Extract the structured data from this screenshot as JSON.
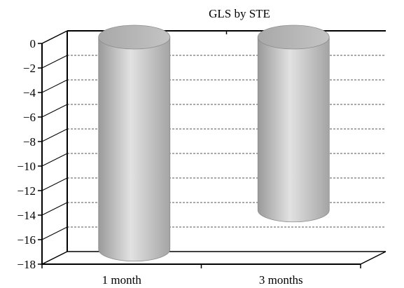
{
  "chart_data": {
    "type": "bar",
    "style": "3d-cylinder",
    "title": "GLS by STE",
    "xlabel": "",
    "ylabel": "",
    "categories": [
      "1 month",
      "3 months"
    ],
    "values": [
      -17.3,
      -14.1
    ],
    "ylim": [
      -18,
      0
    ],
    "yticks": [
      0,
      -2,
      -4,
      -6,
      -8,
      -10,
      -12,
      -14,
      -16,
      -18
    ],
    "grid": "horizontal-dashed",
    "legend": "none",
    "colors": {
      "bar": "#b8b8b8",
      "grid": "#555555",
      "axis": "#000000"
    }
  }
}
